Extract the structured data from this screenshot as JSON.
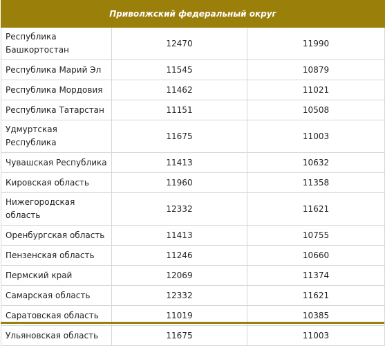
{
  "header": {
    "title": "Приволжский федеральный округ"
  },
  "rows": [
    {
      "region": "Республика Башкортостан",
      "v1": "12470",
      "v2": "11990",
      "lines": 2
    },
    {
      "region": "Республика Марий Эл",
      "v1": "11545",
      "v2": "10879",
      "lines": 1
    },
    {
      "region": "Республика Мордовия",
      "v1": "11462",
      "v2": "11021",
      "lines": 1
    },
    {
      "region": "Республика Татарстан",
      "v1": "11151",
      "v2": "10508",
      "lines": 1
    },
    {
      "region": "Удмуртская Республика",
      "v1": "11675",
      "v2": "11003",
      "lines": 1
    },
    {
      "region": "Чувашская Республика",
      "v1": "11413",
      "v2": "10632",
      "lines": 1
    },
    {
      "region": "Кировская область",
      "v1": "11960",
      "v2": "11358",
      "lines": 1
    },
    {
      "region": "Нижегородская область",
      "v1": "12332",
      "v2": "11621",
      "lines": 2
    },
    {
      "region": "Оренбургская область",
      "v1": "11413",
      "v2": "10755",
      "lines": 1
    },
    {
      "region": "Пензенская область",
      "v1": "11246",
      "v2": "10660",
      "lines": 1
    },
    {
      "region": "Пермский край",
      "v1": "12069",
      "v2": "11374",
      "lines": 1
    },
    {
      "region": "Самарская область",
      "v1": "12332",
      "v2": "11621",
      "lines": 1
    },
    {
      "region": "Саратовская область",
      "v1": "11019",
      "v2": "10385",
      "lines": 1
    },
    {
      "region": "Ульяновская область",
      "v1": "11675",
      "v2": "11003",
      "lines": 1
    }
  ],
  "colors": {
    "header_bg": "#9b7f0b",
    "header_text": "#ffffff",
    "border": "#d6d6d6"
  }
}
